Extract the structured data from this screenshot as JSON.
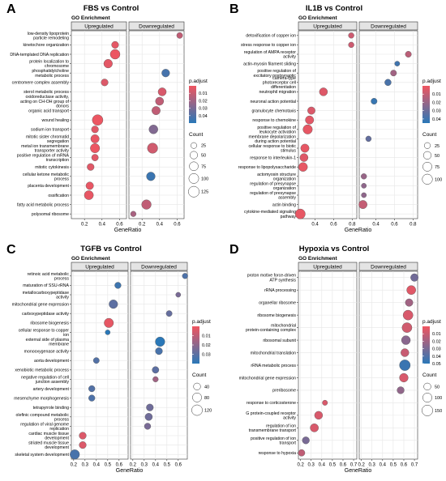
{
  "colors": {
    "high": "#f05560",
    "low": "#2a78b8",
    "grid": "#e6e6e6",
    "strip_bg": "#e4e4e4",
    "point_stroke": "#555555"
  },
  "chart_data": [
    {
      "type": "scatter",
      "panel_letter": "A",
      "title": "FBS vs Control",
      "subtitle": "GO Enrichment",
      "facets": [
        "Upregulated",
        "Downregulated"
      ],
      "xlabel": "GeneRatio",
      "xlim": [
        0.05,
        0.68
      ],
      "xticks": [
        "0.2",
        "0.4",
        "0.6",
        "0.2",
        "0.4",
        "0.6"
      ],
      "xtick_values": [
        0.2,
        0.4,
        0.6
      ],
      "padjust_range": [
        0.0,
        0.05
      ],
      "count_range": [
        5,
        140
      ],
      "categories": [
        "low-density lipoprotein\nparticle remodeling",
        "kinetochore organization",
        "DNA-templated DNA replication",
        "protein localization to\nchromosome",
        "phosphatidylcholine\nmetabolic process",
        "centromere complex assembly",
        "sterol metabolic process",
        "oxidoreductase activity,\nacting on CH-OH group of\ndonors",
        "organic acid transport",
        "wound healing",
        "sodium ion transport",
        "mitotic sister chromatid\nsegregation",
        "metal ion transmembrane\ntransporter activity",
        "positive regulation of mRNA\ntranscription",
        "mitotic cytokinesis",
        "cellular ketone metabolic\nprocess",
        "placenta development",
        "ossification",
        "fatty acid metabolic process",
        "polysomal ribosome"
      ],
      "series": [
        {
          "name": "Upregulated",
          "points": [
            {
              "category": 1,
              "x": 0.55,
              "count": 40,
              "p": 0.003
            },
            {
              "category": 2,
              "x": 0.55,
              "count": 95,
              "p": 0.001
            },
            {
              "category": 3,
              "x": 0.47,
              "count": 70,
              "p": 0.003
            },
            {
              "category": 5,
              "x": 0.43,
              "count": 40,
              "p": 0.005
            },
            {
              "category": 9,
              "x": 0.35,
              "count": 120,
              "p": 0.001
            },
            {
              "category": 10,
              "x": 0.32,
              "count": 40,
              "p": 0.004
            },
            {
              "category": 11,
              "x": 0.32,
              "count": 65,
              "p": 0.002
            },
            {
              "category": 12,
              "x": 0.32,
              "count": 85,
              "p": 0.001
            },
            {
              "category": 13,
              "x": 0.32,
              "count": 35,
              "p": 0.004
            },
            {
              "category": 14,
              "x": 0.27,
              "count": 40,
              "p": 0.004
            },
            {
              "category": 16,
              "x": 0.26,
              "count": 50,
              "p": 0.002
            },
            {
              "category": 17,
              "x": 0.25,
              "count": 80,
              "p": 0.002
            }
          ]
        },
        {
          "name": "Downregulated",
          "points": [
            {
              "category": 0,
              "x": 0.63,
              "count": 25,
              "p": 0.012
            },
            {
              "category": 4,
              "x": 0.47,
              "count": 55,
              "p": 0.043
            },
            {
              "category": 6,
              "x": 0.43,
              "count": 60,
              "p": 0.006
            },
            {
              "category": 7,
              "x": 0.4,
              "count": 60,
              "p": 0.012
            },
            {
              "category": 8,
              "x": 0.36,
              "count": 65,
              "p": 0.012
            },
            {
              "category": 10,
              "x": 0.33,
              "count": 75,
              "p": 0.028
            },
            {
              "category": 12,
              "x": 0.32,
              "count": 110,
              "p": 0.008
            },
            {
              "category": 15,
              "x": 0.3,
              "count": 70,
              "p": 0.046
            },
            {
              "category": 18,
              "x": 0.25,
              "count": 90,
              "p": 0.012
            },
            {
              "category": 19,
              "x": 0.1,
              "count": 20,
              "p": 0.018
            }
          ]
        }
      ],
      "legend": {
        "color_title": "p.adjust",
        "color_ticks": [
          "0.01",
          "0.02",
          "0.03",
          "0.04"
        ],
        "color_tick_values": [
          0.01,
          0.02,
          0.03,
          0.04
        ],
        "size_title": "Count",
        "size_ticks": [
          "25",
          "50",
          "75",
          "100",
          "125"
        ],
        "size_tick_values": [
          25,
          50,
          75,
          100,
          125
        ]
      }
    },
    {
      "type": "scatter",
      "panel_letter": "B",
      "title": "IL1B vs Control",
      "subtitle": "GO Enrichment",
      "facets": [
        "Upregulated",
        "Downregulated"
      ],
      "xlabel": "GeneRatio",
      "xlim": [
        0.22,
        0.85
      ],
      "xticks": [
        "0.4",
        "0.6",
        "0.8",
        "0.4",
        "0.6",
        "0.8"
      ],
      "xtick_values": [
        0.4,
        0.6,
        0.8
      ],
      "padjust_range": [
        0.0,
        0.045
      ],
      "count_range": [
        5,
        130
      ],
      "categories": [
        "detoxification of copper ion",
        "stress response to copper ion",
        "regulation of AMPA receptor\nactivity",
        "actin-myosin filament sliding",
        "positive regulation of\nexcitatory postsynaptic",
        "camera-type\nphotoreceptor cell\ndifferentiation",
        "neutrophil migration",
        "neuronal action potential",
        "granulocyte chemotaxis",
        "response to chemokine",
        "positive regulation of\nleukocyte activation",
        "membrane depolarization\nduring action potential",
        "cellular response to biotic\nstimulus",
        "response to interleukin-1",
        "response to lipopolysaccharide",
        "actomyosin structure\norganization",
        "regulation of presynapse\norganization",
        "regulation of presynapse\nassembly",
        "actin binding",
        "cytokine-mediated signaling\npathway"
      ],
      "series": [
        {
          "name": "Upregulated",
          "points": [
            {
              "category": 0,
              "x": 0.79,
              "count": 20,
              "p": 0.008
            },
            {
              "category": 1,
              "x": 0.79,
              "count": 20,
              "p": 0.008
            },
            {
              "category": 6,
              "x": 0.49,
              "count": 55,
              "p": 0.004
            },
            {
              "category": 8,
              "x": 0.36,
              "count": 45,
              "p": 0.005
            },
            {
              "category": 9,
              "x": 0.34,
              "count": 60,
              "p": 0.003
            },
            {
              "category": 10,
              "x": 0.32,
              "count": 80,
              "p": 0.002
            },
            {
              "category": 12,
              "x": 0.29,
              "count": 60,
              "p": 0.002
            },
            {
              "category": 13,
              "x": 0.28,
              "count": 55,
              "p": 0.004
            },
            {
              "category": 14,
              "x": 0.27,
              "count": 70,
              "p": 0.002
            },
            {
              "category": 19,
              "x": 0.24,
              "count": 95,
              "p": 0.002
            }
          ]
        },
        {
          "name": "Downregulated",
          "points": [
            {
              "category": 2,
              "x": 0.75,
              "count": 25,
              "p": 0.012
            },
            {
              "category": 3,
              "x": 0.63,
              "count": 15,
              "p": 0.04
            },
            {
              "category": 4,
              "x": 0.59,
              "count": 25,
              "p": 0.018
            },
            {
              "category": 5,
              "x": 0.53,
              "count": 30,
              "p": 0.038
            },
            {
              "category": 7,
              "x": 0.38,
              "count": 25,
              "p": 0.042
            },
            {
              "category": 11,
              "x": 0.32,
              "count": 20,
              "p": 0.032
            },
            {
              "category": 15,
              "x": 0.27,
              "count": 20,
              "p": 0.02
            },
            {
              "category": 16,
              "x": 0.27,
              "count": 15,
              "p": 0.022
            },
            {
              "category": 17,
              "x": 0.27,
              "count": 15,
              "p": 0.022
            },
            {
              "category": 18,
              "x": 0.26,
              "count": 60,
              "p": 0.01
            }
          ]
        }
      ],
      "legend": {
        "color_title": "p.adjust",
        "color_ticks": [
          "0.01",
          "0.02",
          "0.03",
          "0.04"
        ],
        "color_tick_values": [
          0.01,
          0.02,
          0.03,
          0.04
        ],
        "size_title": "Count",
        "size_ticks": [
          "25",
          "50",
          "75",
          "100"
        ],
        "size_tick_values": [
          25,
          50,
          75,
          100
        ]
      }
    },
    {
      "type": "scatter",
      "panel_letter": "C",
      "title": "TGFB vs Control",
      "subtitle": "GO Enrichment",
      "facets": [
        "Upregulated",
        "Downregulated"
      ],
      "xlabel": "GeneRatio",
      "xlim": [
        0.18,
        0.68
      ],
      "xticks": [
        "0.2",
        "0.3",
        "0.4",
        "0.5",
        "0.6",
        "0.2",
        "0.3",
        "0.4",
        "0.5",
        "0.6"
      ],
      "xtick_values": [
        0.2,
        0.3,
        0.4,
        0.5,
        0.6
      ],
      "padjust_range": [
        0.0,
        0.04
      ],
      "count_range": [
        5,
        140
      ],
      "categories": [
        "retinoic acid metabolic\nprocess",
        "maturation of SSU-rRNA",
        "metallocarboxypeptidase\nactivity",
        "mitochondrial gene expression",
        "carboxypeptidase activity",
        "ribosome biogenesis",
        "cellular response to copper\nion",
        "external side of plasma\nmembrane",
        "monooxygenase activity",
        "aorta development",
        "xenobiotic metabolic process",
        "negative regulation of cell\njunction assembly",
        "artery development",
        "mesenchyme morphogenesis",
        "tetrapyrrole binding",
        "olefinic compound metabolic\nprocess",
        "regulation of viral genome\nreplication",
        "cardiac muscle tissue\ndevelopment",
        "striated muscle tissue\ndevelopment",
        "skeletal system development"
      ],
      "series": [
        {
          "name": "Upregulated",
          "points": [
            {
              "category": 1,
              "x": 0.59,
              "count": 30,
              "p": 0.036
            },
            {
              "category": 3,
              "x": 0.55,
              "count": 70,
              "p": 0.03
            },
            {
              "category": 5,
              "x": 0.51,
              "count": 85,
              "p": 0.002
            },
            {
              "category": 6,
              "x": 0.5,
              "count": 15,
              "p": 0.04
            },
            {
              "category": 9,
              "x": 0.4,
              "count": 25,
              "p": 0.032
            },
            {
              "category": 12,
              "x": 0.36,
              "count": 30,
              "p": 0.032
            },
            {
              "category": 13,
              "x": 0.36,
              "count": 30,
              "p": 0.033
            },
            {
              "category": 17,
              "x": 0.28,
              "count": 40,
              "p": 0.004
            },
            {
              "category": 18,
              "x": 0.28,
              "count": 40,
              "p": 0.004
            },
            {
              "category": 19,
              "x": 0.21,
              "count": 90,
              "p": 0.034
            }
          ]
        },
        {
          "name": "Downregulated",
          "points": [
            {
              "category": 0,
              "x": 0.66,
              "count": 20,
              "p": 0.033
            },
            {
              "category": 2,
              "x": 0.6,
              "count": 15,
              "p": 0.024
            },
            {
              "category": 4,
              "x": 0.52,
              "count": 25,
              "p": 0.028
            },
            {
              "category": 7,
              "x": 0.44,
              "count": 90,
              "p": 0.04
            },
            {
              "category": 8,
              "x": 0.43,
              "count": 40,
              "p": 0.034
            },
            {
              "category": 10,
              "x": 0.4,
              "count": 35,
              "p": 0.03
            },
            {
              "category": 11,
              "x": 0.4,
              "count": 20,
              "p": 0.016
            },
            {
              "category": 14,
              "x": 0.35,
              "count": 40,
              "p": 0.026
            },
            {
              "category": 15,
              "x": 0.34,
              "count": 45,
              "p": 0.026
            },
            {
              "category": 16,
              "x": 0.33,
              "count": 30,
              "p": 0.024
            }
          ]
        }
      ],
      "legend": {
        "color_title": "p.adjust",
        "color_ticks": [
          "0.01",
          "0.02",
          "0.03"
        ],
        "color_tick_values": [
          0.01,
          0.02,
          0.03
        ],
        "size_title": "Count",
        "size_ticks": [
          "40",
          "80",
          "120"
        ],
        "size_tick_values": [
          40,
          80,
          120
        ]
      }
    },
    {
      "type": "scatter",
      "panel_letter": "D",
      "title": "Hypoxia vs Control",
      "subtitle": "GO Enrichment",
      "facets": [
        "Upregulated",
        "Downregulated"
      ],
      "xlabel": "GeneRatio",
      "xlim": [
        0.18,
        0.73
      ],
      "xticks": [
        "0.2",
        "0.3",
        "0.4",
        "0.5",
        "0.6",
        "0.7",
        "0.2",
        "0.3",
        "0.4",
        "0.5",
        "0.6",
        "0.7"
      ],
      "xtick_values": [
        0.2,
        0.3,
        0.4,
        0.5,
        0.6,
        0.7
      ],
      "padjust_range": [
        0.0,
        0.05
      ],
      "count_range": [
        5,
        170
      ],
      "categories": [
        "proton motive force-driven\nATP synthesis",
        "rRNA processing",
        "organellar ribosome",
        "ribosome biogenesis",
        "mitochondrial\nprotein-containing complex",
        "ribosomal subunit",
        "mitochondrial translation",
        "rRNA metabolic process",
        "mitochondrial gene expression",
        "preribosome",
        "response to corticosterone",
        "G protein-coupled receptor\nactivity",
        "regulation of ion\ntransmembrane transport",
        "positive regulation of ion\ntransport",
        "response to hypoxia"
      ],
      "series": [
        {
          "name": "Upregulated",
          "points": [
            {
              "category": 10,
              "x": 0.43,
              "count": 20,
              "p": 0.006
            },
            {
              "category": 11,
              "x": 0.37,
              "count": 70,
              "p": 0.006
            },
            {
              "category": 12,
              "x": 0.33,
              "count": 75,
              "p": 0.006
            },
            {
              "category": 13,
              "x": 0.25,
              "count": 50,
              "p": 0.03
            },
            {
              "category": 14,
              "x": 0.21,
              "count": 40,
              "p": 0.012
            }
          ]
        },
        {
          "name": "Downregulated",
          "points": [
            {
              "category": 0,
              "x": 0.7,
              "count": 60,
              "p": 0.032
            },
            {
              "category": 1,
              "x": 0.67,
              "count": 95,
              "p": 0.004
            },
            {
              "category": 2,
              "x": 0.65,
              "count": 60,
              "p": 0.02
            },
            {
              "category": 3,
              "x": 0.64,
              "count": 120,
              "p": 0.006
            },
            {
              "category": 4,
              "x": 0.63,
              "count": 120,
              "p": 0.008
            },
            {
              "category": 5,
              "x": 0.62,
              "count": 90,
              "p": 0.026
            },
            {
              "category": 6,
              "x": 0.61,
              "count": 70,
              "p": 0.01
            },
            {
              "category": 7,
              "x": 0.61,
              "count": 150,
              "p": 0.046
            },
            {
              "category": 8,
              "x": 0.6,
              "count": 85,
              "p": 0.006
            },
            {
              "category": 9,
              "x": 0.57,
              "count": 50,
              "p": 0.024
            }
          ]
        }
      ],
      "legend": {
        "color_title": "p.adjust",
        "color_ticks": [
          "0.01",
          "0.02",
          "0.03",
          "0.04",
          "0.05"
        ],
        "color_tick_values": [
          0.01,
          0.02,
          0.03,
          0.04,
          0.05
        ],
        "size_title": "Count",
        "size_ticks": [
          "50",
          "100",
          "150"
        ],
        "size_tick_values": [
          50,
          100,
          150
        ]
      }
    }
  ]
}
